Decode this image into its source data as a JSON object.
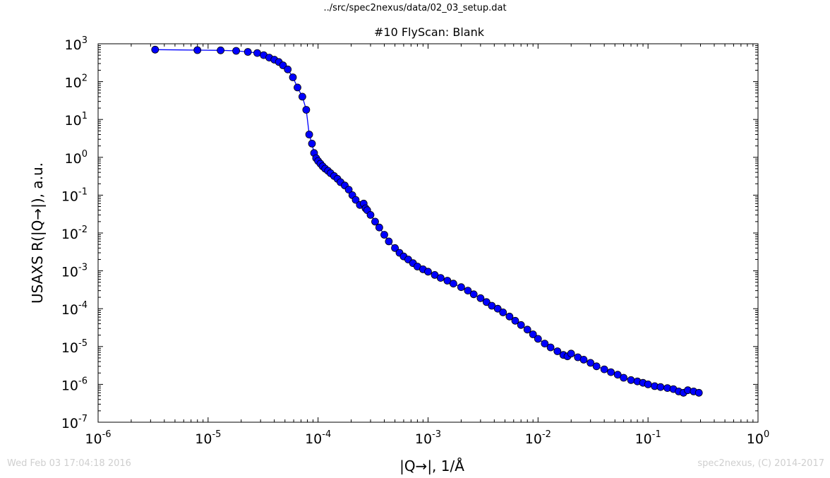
{
  "page": {
    "supertitle": "../src/spec2nexus/data/02_03_setup.dat",
    "footer_left": "Wed Feb 03 17:04:18 2016",
    "footer_right": "spec2nexus, (C) 2014-2017"
  },
  "chart_data": {
    "type": "line",
    "title": "#10 FlyScan: Blank",
    "xlabel": "|Q→|, 1/Å",
    "ylabel": "USAXS R(|Q→|), a.u.",
    "xscale": "log",
    "yscale": "log",
    "xlim": [
      1e-06,
      1
    ],
    "ylim": [
      1e-07,
      1000
    ],
    "x_ticks": [
      {
        "base": "10",
        "exp": "-6"
      },
      {
        "base": "10",
        "exp": "-5"
      },
      {
        "base": "10",
        "exp": "-4"
      },
      {
        "base": "10",
        "exp": "-3"
      },
      {
        "base": "10",
        "exp": "-2"
      },
      {
        "base": "10",
        "exp": "-1"
      },
      {
        "base": "10",
        "exp": "0"
      }
    ],
    "y_ticks": [
      {
        "base": "10",
        "exp": "3"
      },
      {
        "base": "10",
        "exp": "2"
      },
      {
        "base": "10",
        "exp": "1"
      },
      {
        "base": "10",
        "exp": "0"
      },
      {
        "base": "10",
        "exp": "-1"
      },
      {
        "base": "10",
        "exp": "-2"
      },
      {
        "base": "10",
        "exp": "-3"
      },
      {
        "base": "10",
        "exp": "-4"
      },
      {
        "base": "10",
        "exp": "-5"
      },
      {
        "base": "10",
        "exp": "-6"
      },
      {
        "base": "10",
        "exp": "-7"
      }
    ],
    "grid": false,
    "line_color": "#0000ff",
    "marker_color": "#0000ff",
    "marker_edge_color": "#000000",
    "series": [
      {
        "x": [
          3.3e-06,
          8e-06,
          1.3e-05,
          1.8e-05,
          2.3e-05,
          2.8e-05,
          3.2e-05,
          3.6e-05,
          4e-05,
          4.4e-05,
          4.8e-05,
          5.3e-05,
          5.9e-05,
          6.5e-05,
          7.2e-05,
          7.8e-05,
          8.3e-05,
          8.8e-05,
          9.2e-05,
          9.6e-05,
          0.0001,
          0.000105,
          0.00011,
          0.000116,
          0.000123,
          0.00013,
          0.00014,
          0.00015,
          0.00016,
          0.000175,
          0.00019,
          0.000205,
          0.00022,
          0.00024,
          0.00026,
          0.00027,
          0.00028,
          0.0003,
          0.00033,
          0.00036,
          0.0004,
          0.00044,
          0.0005,
          0.00055,
          0.0006,
          0.00066,
          0.00073,
          0.0008,
          0.0009,
          0.001,
          0.00115,
          0.0013,
          0.0015,
          0.0017,
          0.002,
          0.0023,
          0.0026,
          0.003,
          0.0034,
          0.0038,
          0.0043,
          0.0048,
          0.0055,
          0.0062,
          0.007,
          0.008,
          0.009,
          0.01,
          0.0115,
          0.013,
          0.015,
          0.017,
          0.0185,
          0.02,
          0.023,
          0.026,
          0.03,
          0.034,
          0.04,
          0.046,
          0.053,
          0.06,
          0.07,
          0.08,
          0.09,
          0.1,
          0.115,
          0.13,
          0.15,
          0.17,
          0.19,
          0.21,
          0.23,
          0.26,
          0.29
        ],
        "y": [
          700,
          680,
          670,
          650,
          610,
          570,
          500,
          430,
          380,
          330,
          270,
          210,
          130,
          70,
          40,
          18,
          4,
          2.3,
          1.3,
          0.95,
          0.8,
          0.68,
          0.58,
          0.5,
          0.44,
          0.38,
          0.32,
          0.27,
          0.22,
          0.18,
          0.14,
          0.1,
          0.075,
          0.055,
          0.06,
          0.045,
          0.04,
          0.03,
          0.02,
          0.014,
          0.009,
          0.006,
          0.004,
          0.003,
          0.0024,
          0.002,
          0.0016,
          0.0013,
          0.0011,
          0.00095,
          0.00078,
          0.00065,
          0.00055,
          0.00046,
          0.00037,
          0.0003,
          0.00024,
          0.00019,
          0.00015,
          0.00012,
          0.0001,
          8e-05,
          6.2e-05,
          4.8e-05,
          3.7e-05,
          2.8e-05,
          2.1e-05,
          1.6e-05,
          1.2e-05,
          9.5e-06,
          7.5e-06,
          6e-06,
          5.5e-06,
          6.5e-06,
          5.2e-06,
          4.5e-06,
          3.7e-06,
          3e-06,
          2.5e-06,
          2.1e-06,
          1.8e-06,
          1.5e-06,
          1.3e-06,
          1.2e-06,
          1.1e-06,
          1e-06,
          9e-07,
          8.5e-07,
          8e-07,
          7.5e-07,
          6.5e-07,
          6e-07,
          7e-07,
          6.5e-07,
          6e-07
        ]
      }
    ]
  }
}
